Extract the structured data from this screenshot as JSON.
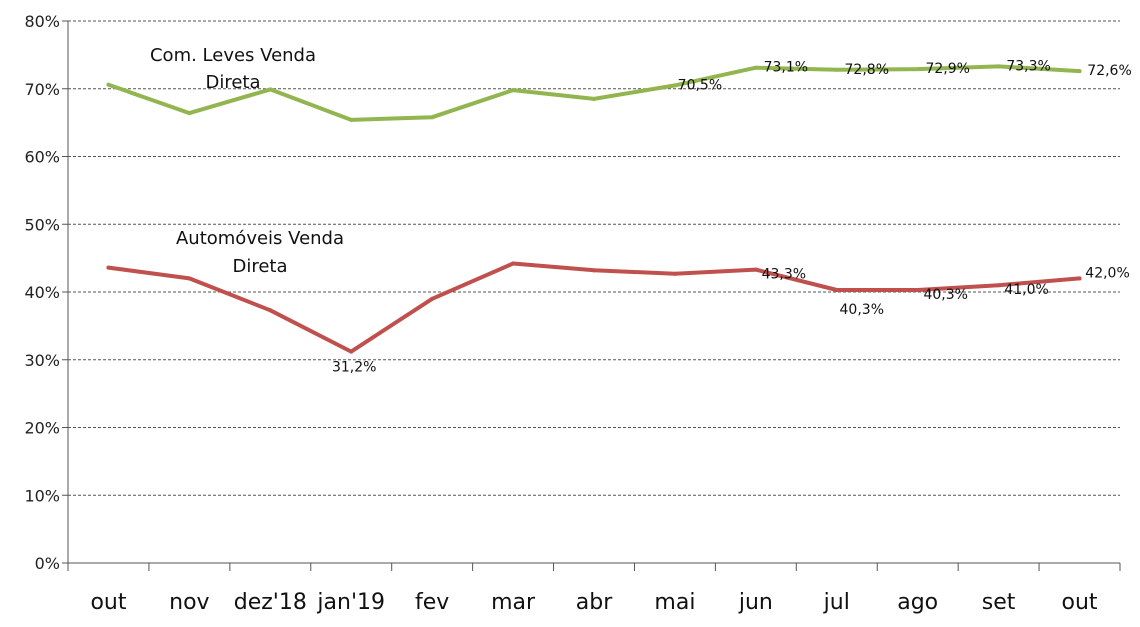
{
  "chart_data": {
    "type": "line",
    "categories": [
      "out",
      "nov",
      "dez'18",
      "jan'19",
      "fev",
      "mar",
      "abr",
      "mai",
      "jun",
      "jul",
      "ago",
      "set",
      "out"
    ],
    "ylim": [
      0,
      80
    ],
    "yticks": [
      "0%",
      "10%",
      "20%",
      "30%",
      "40%",
      "50%",
      "60%",
      "70%",
      "80%"
    ],
    "grid": true,
    "series": [
      {
        "name": "Com. Leves Venda Direta",
        "label_lines": [
          "Com. Leves Venda",
          "Direta"
        ],
        "color": "#92b550",
        "values": [
          70.6,
          66.4,
          69.9,
          65.4,
          65.8,
          69.8,
          68.5,
          70.5,
          73.1,
          72.8,
          72.9,
          73.3,
          72.6
        ],
        "data_labels": [
          null,
          null,
          null,
          null,
          null,
          null,
          null,
          "70,5%",
          "73,1%",
          "72,8%",
          "72,9%",
          "73,3%",
          "72,6%"
        ]
      },
      {
        "name": "Automóveis Venda Direta",
        "label_lines": [
          "Automóveis Venda",
          "Direta"
        ],
        "color": "#c0504d",
        "values": [
          43.6,
          42.0,
          37.3,
          31.2,
          39.0,
          44.2,
          43.2,
          42.7,
          43.3,
          40.3,
          40.3,
          41.0,
          42.0
        ],
        "data_labels": [
          null,
          null,
          null,
          "31,2%",
          null,
          null,
          null,
          null,
          "43,3%",
          "40,3%",
          "40,3%",
          "41,0%",
          "42,0%"
        ]
      }
    ]
  }
}
